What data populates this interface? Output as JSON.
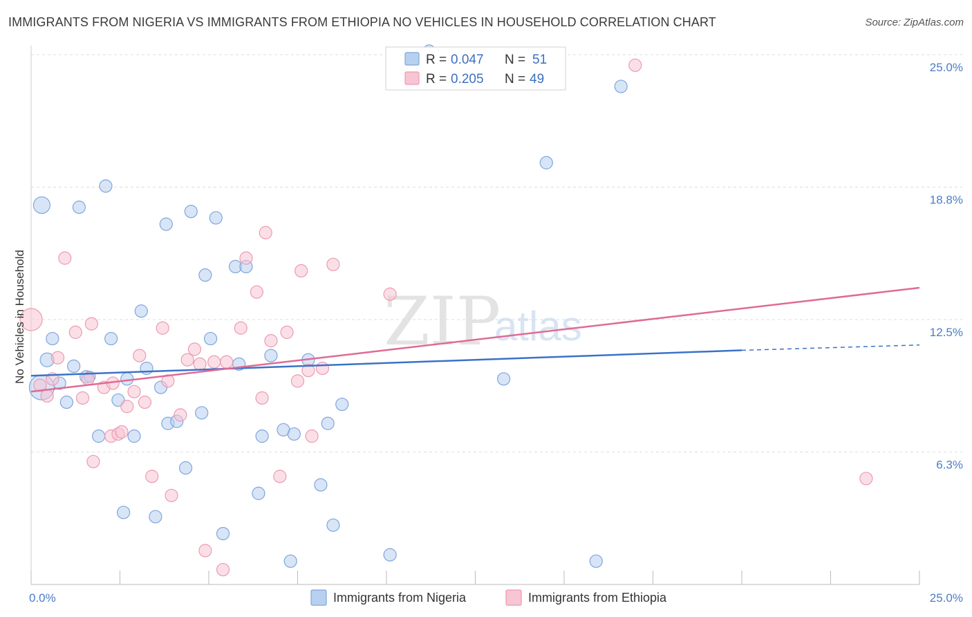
{
  "title": "IMMIGRANTS FROM NIGERIA VS IMMIGRANTS FROM ETHIOPIA NO VEHICLES IN HOUSEHOLD CORRELATION CHART",
  "source": "Source: ZipAtlas.com",
  "watermark": {
    "zip": "ZIP",
    "atlas": "atlas"
  },
  "colors": {
    "nigeria_fill": "#b8d0f0",
    "nigeria_stroke": "#7ea6db",
    "nigeria_line": "#3a72c8",
    "ethiopia_fill": "#f7c5d3",
    "ethiopia_stroke": "#ec9ab2",
    "ethiopia_line": "#e06a95",
    "grid": "#dddddd",
    "axis_label": "#4a7cc8"
  },
  "legend": {
    "rows": [
      {
        "r_label": "R = ",
        "r_value": "0.047",
        "n_label": "N = ",
        "n_value": "51"
      },
      {
        "r_label": "R = ",
        "r_value": "0.205",
        "n_label": "N = ",
        "n_value": "49"
      }
    ]
  },
  "chart_data": {
    "type": "scatter",
    "xlabel": "",
    "ylabel": "No Vehicles in Household",
    "xlim": [
      0,
      25
    ],
    "ylim": [
      0,
      25
    ],
    "x_tick_labels": [
      "0.0%",
      "25.0%"
    ],
    "y_tick_labels": [
      "6.3%",
      "12.5%",
      "18.8%",
      "25.0%"
    ],
    "y_ticks": [
      6.25,
      12.5,
      18.75,
      25.0
    ],
    "series": [
      {
        "name": "Immigrants from Nigeria",
        "trend": {
          "x0": 0,
          "y0": 9.85,
          "x1": 20,
          "y1": 11.05,
          "dash_to": 25,
          "dash_y": 11.3
        },
        "points": [
          [
            0.3,
            9.3,
            18
          ],
          [
            0.3,
            17.9,
            12
          ],
          [
            0.45,
            10.6,
            10
          ],
          [
            0.6,
            11.6,
            9
          ],
          [
            0.8,
            9.5,
            9
          ],
          [
            1.0,
            8.6,
            9
          ],
          [
            1.2,
            10.3,
            9
          ],
          [
            1.35,
            17.8,
            9
          ],
          [
            1.55,
            9.8,
            9
          ],
          [
            1.65,
            9.8,
            8
          ],
          [
            1.9,
            7.0,
            9
          ],
          [
            2.1,
            18.8,
            9
          ],
          [
            2.25,
            11.6,
            9
          ],
          [
            2.45,
            8.7,
            9
          ],
          [
            2.6,
            3.4,
            9
          ],
          [
            2.7,
            9.7,
            9
          ],
          [
            2.9,
            7.0,
            9
          ],
          [
            3.1,
            12.9,
            9
          ],
          [
            3.25,
            10.2,
            9
          ],
          [
            3.5,
            3.2,
            9
          ],
          [
            3.65,
            9.3,
            9
          ],
          [
            3.8,
            17.0,
            9
          ],
          [
            3.85,
            7.6,
            9
          ],
          [
            4.1,
            7.7,
            9
          ],
          [
            4.35,
            5.5,
            9
          ],
          [
            4.5,
            17.6,
            9
          ],
          [
            4.8,
            8.1,
            9
          ],
          [
            4.9,
            14.6,
            9
          ],
          [
            5.05,
            11.6,
            9
          ],
          [
            5.2,
            17.3,
            9
          ],
          [
            5.4,
            2.4,
            9
          ],
          [
            5.75,
            15.0,
            9
          ],
          [
            5.85,
            10.4,
            9
          ],
          [
            6.05,
            15.0,
            9
          ],
          [
            6.4,
            4.3,
            9
          ],
          [
            6.5,
            7.0,
            9
          ],
          [
            6.75,
            10.8,
            9
          ],
          [
            7.1,
            7.3,
            9
          ],
          [
            7.3,
            1.1,
            9
          ],
          [
            7.4,
            7.1,
            9
          ],
          [
            7.8,
            10.6,
            9
          ],
          [
            8.15,
            4.7,
            9
          ],
          [
            8.35,
            7.6,
            9
          ],
          [
            8.5,
            2.8,
            9
          ],
          [
            8.75,
            8.5,
            9
          ],
          [
            10.1,
            1.4,
            9
          ],
          [
            11.2,
            25.2,
            8
          ],
          [
            13.3,
            9.7,
            9
          ],
          [
            14.5,
            19.9,
            9
          ],
          [
            15.9,
            1.1,
            9
          ],
          [
            16.6,
            23.5,
            9
          ]
        ]
      },
      {
        "name": "Immigrants from Ethiopia",
        "trend": {
          "x0": 0,
          "y0": 9.1,
          "x1": 25,
          "y1": 14.0
        },
        "points": [
          [
            0.0,
            12.5,
            16
          ],
          [
            0.25,
            9.4,
            9
          ],
          [
            0.45,
            8.9,
            9
          ],
          [
            0.6,
            9.7,
            9
          ],
          [
            0.75,
            10.7,
            9
          ],
          [
            0.95,
            15.4,
            9
          ],
          [
            1.25,
            11.9,
            9
          ],
          [
            1.45,
            8.8,
            9
          ],
          [
            1.6,
            9.7,
            9
          ],
          [
            1.7,
            12.3,
            9
          ],
          [
            1.75,
            5.8,
            9
          ],
          [
            2.05,
            9.3,
            9
          ],
          [
            2.25,
            7.0,
            9
          ],
          [
            2.3,
            9.5,
            9
          ],
          [
            2.45,
            7.1,
            9
          ],
          [
            2.55,
            7.2,
            9
          ],
          [
            2.7,
            8.4,
            9
          ],
          [
            2.9,
            9.1,
            9
          ],
          [
            3.05,
            10.8,
            9
          ],
          [
            3.2,
            8.6,
            9
          ],
          [
            3.4,
            5.1,
            9
          ],
          [
            3.7,
            12.1,
            9
          ],
          [
            3.85,
            9.6,
            9
          ],
          [
            3.95,
            4.2,
            9
          ],
          [
            4.2,
            8.0,
            9
          ],
          [
            4.4,
            10.6,
            9
          ],
          [
            4.6,
            11.1,
            9
          ],
          [
            4.75,
            10.4,
            9
          ],
          [
            4.9,
            1.6,
            9
          ],
          [
            5.15,
            10.5,
            9
          ],
          [
            5.4,
            0.7,
            9
          ],
          [
            5.5,
            10.5,
            9
          ],
          [
            5.9,
            12.1,
            9
          ],
          [
            6.05,
            15.4,
            9
          ],
          [
            6.35,
            13.8,
            9
          ],
          [
            6.5,
            8.8,
            9
          ],
          [
            6.6,
            16.6,
            9
          ],
          [
            6.75,
            11.5,
            9
          ],
          [
            7.0,
            5.1,
            9
          ],
          [
            7.2,
            11.9,
            9
          ],
          [
            7.5,
            9.6,
            9
          ],
          [
            7.6,
            14.8,
            9
          ],
          [
            7.8,
            10.1,
            9
          ],
          [
            7.9,
            7.0,
            9
          ],
          [
            8.2,
            10.2,
            9
          ],
          [
            8.5,
            15.1,
            9
          ],
          [
            10.1,
            13.7,
            9
          ],
          [
            17.0,
            24.5,
            9
          ],
          [
            23.5,
            5.0,
            9
          ]
        ]
      }
    ]
  }
}
